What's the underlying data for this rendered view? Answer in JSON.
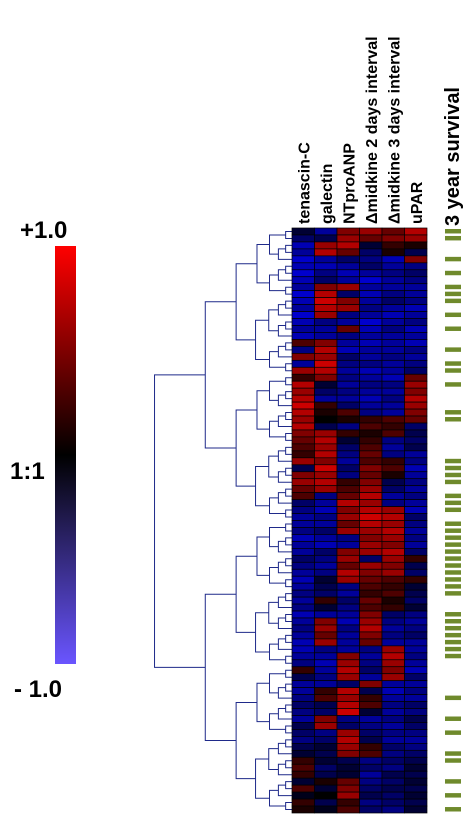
{
  "colors": {
    "positive": "#ff0000",
    "neutral": "#000000",
    "negative": "#0000ff",
    "legend_bottom": "#6a55ff",
    "survival": "#6f8a2c",
    "dendrogram": "#1f2a8a"
  },
  "chart_data": {
    "type": "heatmap",
    "columns": [
      "tenascin-C",
      "galectin",
      "NTproANP",
      "Δmidkine 2 days interval",
      "Δmidkine 3 days interval",
      "uPAR"
    ],
    "survival_label": "3 year survival",
    "scale": {
      "max_label": "+1.0",
      "mid_label": "1:1",
      "min_label": "- 1.0",
      "range": [
        -1,
        1
      ]
    },
    "row_count": 84,
    "values": [
      [
        -0.2,
        -0.6,
        0.5,
        0.6,
        0.4,
        0.7
      ],
      [
        -0.4,
        -0.3,
        0.6,
        0.4,
        0.5,
        0.6
      ],
      [
        -0.7,
        0.6,
        0.7,
        -0.2,
        0.2,
        0.1
      ],
      [
        -0.6,
        0.7,
        0.4,
        -0.4,
        0.1,
        -0.3
      ],
      [
        -0.8,
        -0.6,
        -0.4,
        -0.5,
        -0.7,
        0.5
      ],
      [
        -0.7,
        -0.7,
        -0.6,
        -0.4,
        -0.6,
        -0.5
      ],
      [
        -0.8,
        -0.5,
        -0.7,
        -0.6,
        -0.5,
        -0.4
      ],
      [
        -0.7,
        -0.4,
        -0.6,
        -0.8,
        -0.6,
        -0.5
      ],
      [
        -0.6,
        0.5,
        0.6,
        -0.6,
        -0.6,
        -0.6
      ],
      [
        -0.8,
        0.7,
        -0.4,
        -0.7,
        -0.5,
        -0.6
      ],
      [
        -0.7,
        0.8,
        0.5,
        -0.6,
        -0.4,
        -0.5
      ],
      [
        -0.6,
        0.7,
        0.6,
        -0.5,
        -0.6,
        -0.7
      ],
      [
        -0.8,
        0.6,
        -0.5,
        -0.6,
        -0.7,
        -0.6
      ],
      [
        -0.7,
        -0.5,
        -0.6,
        -0.8,
        -0.6,
        -0.5
      ],
      [
        -0.6,
        -0.6,
        0.4,
        -0.7,
        -0.5,
        -0.7
      ],
      [
        -0.7,
        -0.6,
        -0.5,
        -0.6,
        -0.6,
        -0.6
      ],
      [
        0.3,
        0.5,
        -0.6,
        -0.7,
        -0.6,
        -0.7
      ],
      [
        -0.5,
        0.7,
        -0.7,
        -0.6,
        -0.6,
        -0.5
      ],
      [
        0.5,
        0.6,
        -0.4,
        -0.6,
        -0.5,
        -0.6
      ],
      [
        -0.6,
        0.8,
        -0.5,
        -0.5,
        -0.6,
        -0.5
      ],
      [
        0.6,
        0.7,
        -0.6,
        -0.7,
        -0.6,
        -0.4
      ],
      [
        0.2,
        0.5,
        -0.5,
        -0.6,
        -0.7,
        0.4
      ],
      [
        0.7,
        -0.2,
        -0.6,
        -0.5,
        -0.5,
        0.6
      ],
      [
        0.6,
        -0.4,
        -0.5,
        -0.6,
        -0.6,
        0.5
      ],
      [
        0.7,
        -0.6,
        -0.6,
        -0.7,
        -0.5,
        0.7
      ],
      [
        0.8,
        0.2,
        -0.4,
        -0.6,
        -0.6,
        0.6
      ],
      [
        0.7,
        0.1,
        0.3,
        -0.5,
        -0.6,
        0.5
      ],
      [
        0.6,
        0.0,
        0.1,
        0.2,
        0.3,
        0.4
      ],
      [
        0.7,
        -0.3,
        -0.5,
        0.3,
        0.2,
        -0.4
      ],
      [
        0.5,
        0.6,
        0.2,
        0.1,
        0.3,
        -0.3
      ],
      [
        0.4,
        0.7,
        -0.2,
        0.2,
        -0.5,
        -0.4
      ],
      [
        0.3,
        0.6,
        -0.4,
        0.3,
        -0.6,
        -0.3
      ],
      [
        0.2,
        0.7,
        -0.5,
        0.4,
        -0.5,
        -0.6
      ],
      [
        0.6,
        0.5,
        -0.6,
        0.3,
        0.2,
        -0.5
      ],
      [
        -0.3,
        0.8,
        -0.4,
        0.5,
        0.3,
        -0.7
      ],
      [
        0.5,
        0.6,
        -0.5,
        0.4,
        0.1,
        -0.6
      ],
      [
        0.6,
        0.7,
        0.2,
        0.5,
        -0.3,
        -0.5
      ],
      [
        0.4,
        0.6,
        0.3,
        0.6,
        -0.4,
        -0.6
      ],
      [
        0.3,
        -0.5,
        0.4,
        0.7,
        -0.6,
        -0.5
      ],
      [
        -0.4,
        -0.6,
        0.7,
        0.6,
        -0.5,
        -0.6
      ],
      [
        -0.5,
        -0.7,
        0.5,
        0.7,
        0.6,
        -0.7
      ],
      [
        -0.6,
        -0.5,
        0.6,
        0.8,
        0.7,
        -0.4
      ],
      [
        -0.6,
        -0.6,
        0.4,
        0.7,
        0.6,
        -0.5
      ],
      [
        -0.5,
        -0.4,
        0.6,
        0.6,
        0.7,
        -0.6
      ],
      [
        -0.7,
        -0.6,
        -0.5,
        0.5,
        0.6,
        -0.5
      ],
      [
        -0.6,
        -0.7,
        -0.6,
        0.6,
        0.5,
        -0.6
      ],
      [
        -0.6,
        -0.4,
        0.5,
        0.6,
        0.7,
        -0.4
      ],
      [
        -0.4,
        -0.5,
        0.6,
        -0.4,
        0.6,
        0.2
      ],
      [
        -0.5,
        -0.6,
        0.4,
        0.6,
        0.5,
        -0.3
      ],
      [
        -0.6,
        -0.5,
        0.7,
        0.5,
        0.6,
        -0.4
      ],
      [
        -0.7,
        -0.2,
        0.6,
        0.4,
        0.3,
        0.2
      ],
      [
        -0.6,
        -0.3,
        -0.5,
        0.3,
        0.2,
        -0.2
      ],
      [
        -0.5,
        -0.4,
        -0.6,
        0.2,
        0.3,
        -0.3
      ],
      [
        -0.6,
        0.2,
        -0.4,
        0.4,
        0.1,
        -0.4
      ],
      [
        -0.5,
        -0.2,
        -0.5,
        0.3,
        0.2,
        -0.2
      ],
      [
        -0.7,
        -0.6,
        -0.6,
        0.5,
        -0.4,
        -0.5
      ],
      [
        -0.6,
        0.5,
        -0.7,
        0.6,
        -0.5,
        -0.6
      ],
      [
        -0.5,
        0.6,
        -0.5,
        0.7,
        -0.6,
        -0.5
      ],
      [
        -0.6,
        0.4,
        -0.6,
        0.5,
        -0.5,
        -0.4
      ],
      [
        -0.7,
        0.6,
        -0.6,
        0.4,
        -0.6,
        -0.6
      ],
      [
        -0.7,
        -0.5,
        -0.6,
        -0.5,
        0.6,
        -0.6
      ],
      [
        -0.6,
        -0.6,
        0.5,
        -0.6,
        0.7,
        -0.5
      ],
      [
        -0.5,
        -0.7,
        0.6,
        -0.5,
        0.6,
        -0.6
      ],
      [
        0.2,
        -0.6,
        0.7,
        -0.4,
        0.5,
        -0.7
      ],
      [
        -0.3,
        -0.5,
        0.6,
        -0.6,
        0.6,
        -0.4
      ],
      [
        -0.6,
        -0.6,
        -0.4,
        0.5,
        -0.6,
        -0.6
      ],
      [
        -0.6,
        0.2,
        0.7,
        -0.3,
        -0.7,
        -0.5
      ],
      [
        -0.5,
        0.3,
        0.6,
        0.2,
        -0.6,
        -0.6
      ],
      [
        -0.4,
        -0.3,
        0.7,
        0.3,
        -0.5,
        -0.4
      ],
      [
        -0.5,
        -0.4,
        0.8,
        -0.2,
        -0.6,
        -0.5
      ],
      [
        -0.6,
        0.5,
        -0.5,
        -0.6,
        -0.5,
        -0.3
      ],
      [
        -0.3,
        0.6,
        -0.4,
        -0.5,
        -0.6,
        -0.4
      ],
      [
        -0.4,
        -0.5,
        0.6,
        -0.4,
        -0.5,
        -0.5
      ],
      [
        -0.5,
        -0.4,
        0.7,
        -0.3,
        -0.6,
        -0.6
      ],
      [
        -0.3,
        -0.2,
        0.6,
        0.2,
        -0.4,
        -0.5
      ],
      [
        -0.2,
        -0.3,
        0.5,
        0.3,
        -0.5,
        -0.4
      ],
      [
        0.2,
        -0.2,
        -0.3,
        -0.5,
        -0.4,
        -0.3
      ],
      [
        0.3,
        -0.4,
        -0.2,
        -0.4,
        -0.5,
        -0.2
      ],
      [
        0.2,
        -0.3,
        -0.2,
        -0.6,
        -0.3,
        -0.3
      ],
      [
        -0.2,
        0.1,
        0.4,
        -0.5,
        -0.4,
        -0.2
      ],
      [
        0.3,
        -0.2,
        0.5,
        -0.4,
        -0.3,
        -0.3
      ],
      [
        -0.1,
        0.0,
        0.6,
        -0.3,
        -0.4,
        -0.2
      ],
      [
        0.2,
        -0.3,
        0.2,
        -0.5,
        -0.4,
        -0.3
      ],
      [
        0.1,
        -0.1,
        0.3,
        -0.4,
        -0.5,
        -0.2
      ]
    ],
    "survival": [
      1,
      1,
      0,
      0,
      1,
      0,
      1,
      0,
      1,
      1,
      1,
      0,
      1,
      0,
      1,
      0,
      0,
      1,
      0,
      1,
      1,
      0,
      1,
      0,
      0,
      0,
      1,
      1,
      0,
      0,
      0,
      0,
      0,
      1,
      1,
      1,
      1,
      0,
      1,
      1,
      1,
      0,
      1,
      1,
      1,
      1,
      1,
      1,
      1,
      1,
      1,
      1,
      1,
      0,
      0,
      1,
      1,
      1,
      1,
      1,
      1,
      1,
      0,
      0,
      0,
      0,
      0,
      1,
      0,
      0,
      1,
      0,
      1,
      0,
      0,
      1,
      1,
      0,
      0,
      1,
      0,
      1,
      0,
      1
    ]
  }
}
